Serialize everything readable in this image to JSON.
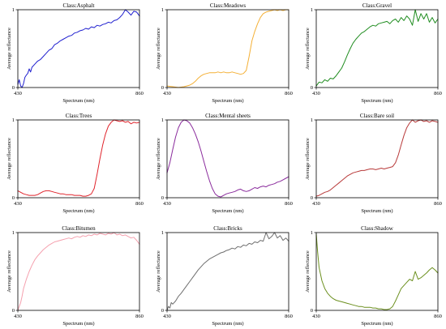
{
  "chart_data": [
    {
      "type": "line",
      "title": "Class:Asphalt",
      "xlabel": "Spectrum (nm)",
      "ylabel": "Average reflectance",
      "xlim": [
        430,
        860
      ],
      "ylim": [
        0,
        1
      ],
      "xticks": [
        "430",
        "860"
      ],
      "yticks": [
        "0",
        "1"
      ],
      "color": "#1f1fcf",
      "series": [
        {
          "x": [
            430,
            435,
            440,
            445,
            450,
            455,
            460,
            465,
            470,
            475,
            480,
            490,
            500,
            510,
            520,
            530,
            540,
            550,
            560,
            570,
            580,
            590,
            600,
            610,
            620,
            630,
            640,
            650,
            660,
            670,
            680,
            690,
            700,
            710,
            720,
            730,
            740,
            750,
            760,
            770,
            780,
            790,
            800,
            810,
            820,
            830,
            840,
            850,
            860
          ],
          "values": [
            0.04,
            0.1,
            0.02,
            0.0,
            0.05,
            0.13,
            0.16,
            0.18,
            0.24,
            0.2,
            0.26,
            0.3,
            0.34,
            0.36,
            0.4,
            0.44,
            0.48,
            0.5,
            0.55,
            0.57,
            0.6,
            0.62,
            0.64,
            0.66,
            0.67,
            0.7,
            0.71,
            0.73,
            0.74,
            0.76,
            0.75,
            0.78,
            0.77,
            0.8,
            0.79,
            0.81,
            0.82,
            0.84,
            0.83,
            0.86,
            0.87,
            0.9,
            0.94,
            1.0,
            0.97,
            0.93,
            0.98,
            0.97,
            0.92
          ]
        }
      ]
    },
    {
      "type": "line",
      "title": "Class:Meadows",
      "xlabel": "Spectrum (nm)",
      "ylabel": "Average reflectance",
      "xlim": [
        430,
        860
      ],
      "ylim": [
        0,
        1
      ],
      "xticks": [
        "430",
        "860"
      ],
      "yticks": [
        "0",
        "1"
      ],
      "color": "#f4b036",
      "series": [
        {
          "x": [
            430,
            450,
            470,
            490,
            510,
            520,
            530,
            540,
            550,
            560,
            570,
            580,
            590,
            600,
            610,
            620,
            630,
            640,
            650,
            660,
            670,
            680,
            690,
            700,
            710,
            720,
            730,
            740,
            750,
            760,
            770,
            780,
            790,
            800,
            810,
            820,
            830,
            840,
            850,
            860
          ],
          "values": [
            0.02,
            0.01,
            0.0,
            0.01,
            0.03,
            0.05,
            0.08,
            0.12,
            0.15,
            0.17,
            0.18,
            0.19,
            0.19,
            0.19,
            0.2,
            0.19,
            0.2,
            0.19,
            0.19,
            0.2,
            0.19,
            0.18,
            0.17,
            0.18,
            0.22,
            0.4,
            0.6,
            0.72,
            0.82,
            0.9,
            0.95,
            0.97,
            0.98,
            0.99,
            1.0,
            0.99,
            1.0,
            0.99,
            1.0,
            1.0
          ]
        }
      ]
    },
    {
      "type": "line",
      "title": "Class:Gravel",
      "xlabel": "Spectrum (nm)",
      "ylabel": "Average reflectance",
      "xlim": [
        430,
        860
      ],
      "ylim": [
        0,
        1
      ],
      "xticks": [
        "430",
        "860"
      ],
      "yticks": [
        "0",
        "1"
      ],
      "color": "#1f8c1f",
      "series": [
        {
          "x": [
            430,
            440,
            450,
            460,
            470,
            480,
            490,
            500,
            510,
            520,
            530,
            540,
            550,
            560,
            570,
            580,
            590,
            600,
            610,
            620,
            630,
            640,
            650,
            660,
            670,
            680,
            690,
            700,
            710,
            720,
            730,
            740,
            750,
            760,
            770,
            780,
            790,
            800,
            810,
            820,
            830,
            840,
            850,
            860
          ],
          "values": [
            0.02,
            0.07,
            0.06,
            0.1,
            0.08,
            0.12,
            0.11,
            0.15,
            0.2,
            0.25,
            0.33,
            0.42,
            0.5,
            0.57,
            0.62,
            0.66,
            0.7,
            0.72,
            0.75,
            0.78,
            0.8,
            0.79,
            0.82,
            0.83,
            0.84,
            0.85,
            0.82,
            0.86,
            0.88,
            0.84,
            0.9,
            0.86,
            0.92,
            0.88,
            0.8,
            1.0,
            0.85,
            0.95,
            0.88,
            0.95,
            0.84,
            0.9,
            0.83,
            0.88
          ]
        }
      ]
    },
    {
      "type": "line",
      "title": "Class:Trees",
      "xlabel": "Spectrum (nm)",
      "ylabel": "Average reflectance",
      "xlim": [
        430,
        860
      ],
      "ylim": [
        0,
        1
      ],
      "xticks": [
        "430",
        "860"
      ],
      "yticks": [
        "0",
        "1"
      ],
      "color": "#e0242c",
      "series": [
        {
          "x": [
            430,
            440,
            450,
            460,
            470,
            480,
            490,
            500,
            510,
            520,
            530,
            540,
            550,
            560,
            570,
            580,
            590,
            600,
            610,
            620,
            630,
            640,
            650,
            660,
            670,
            680,
            690,
            700,
            710,
            720,
            730,
            740,
            750,
            760,
            770,
            780,
            790,
            800,
            810,
            820,
            830,
            840,
            850,
            860
          ],
          "values": [
            0.09,
            0.07,
            0.05,
            0.04,
            0.03,
            0.03,
            0.03,
            0.04,
            0.06,
            0.08,
            0.09,
            0.09,
            0.08,
            0.07,
            0.06,
            0.05,
            0.05,
            0.04,
            0.04,
            0.04,
            0.03,
            0.03,
            0.03,
            0.02,
            0.02,
            0.03,
            0.05,
            0.12,
            0.3,
            0.5,
            0.68,
            0.82,
            0.92,
            0.97,
            1.0,
            0.99,
            0.98,
            0.99,
            0.97,
            0.98,
            0.95,
            0.97,
            0.96,
            0.97
          ]
        }
      ]
    },
    {
      "type": "line",
      "title": "Class:Mental sheets",
      "xlabel": "Spectrum (nm)",
      "ylabel": "Average reflectance",
      "xlim": [
        430,
        860
      ],
      "ylim": [
        0,
        1
      ],
      "xticks": [
        "430",
        "860"
      ],
      "yticks": [
        "0",
        "1"
      ],
      "color": "#8a2b9c",
      "series": [
        {
          "x": [
            430,
            440,
            450,
            460,
            470,
            480,
            490,
            500,
            510,
            520,
            530,
            540,
            550,
            560,
            570,
            580,
            590,
            600,
            610,
            620,
            630,
            640,
            650,
            660,
            670,
            680,
            690,
            700,
            710,
            720,
            730,
            740,
            750,
            760,
            770,
            780,
            790,
            800,
            810,
            820,
            830,
            840,
            850,
            860
          ],
          "values": [
            0.32,
            0.45,
            0.62,
            0.78,
            0.9,
            0.97,
            1.0,
            0.99,
            0.96,
            0.9,
            0.82,
            0.72,
            0.6,
            0.47,
            0.34,
            0.22,
            0.12,
            0.05,
            0.02,
            0.01,
            0.03,
            0.05,
            0.06,
            0.07,
            0.08,
            0.1,
            0.11,
            0.09,
            0.08,
            0.09,
            0.11,
            0.13,
            0.12,
            0.14,
            0.15,
            0.14,
            0.16,
            0.17,
            0.18,
            0.2,
            0.21,
            0.23,
            0.25,
            0.27
          ]
        }
      ]
    },
    {
      "type": "line",
      "title": "Class:Bare soil",
      "xlabel": "Spectrum (nm)",
      "ylabel": "Average reflectance",
      "xlim": [
        430,
        860
      ],
      "ylim": [
        0,
        1
      ],
      "xticks": [
        "430",
        "860"
      ],
      "yticks": [
        "0",
        "1"
      ],
      "color": "#b83a3a",
      "series": [
        {
          "x": [
            430,
            440,
            450,
            460,
            470,
            480,
            490,
            500,
            510,
            520,
            530,
            540,
            550,
            560,
            570,
            580,
            590,
            600,
            610,
            620,
            630,
            640,
            650,
            660,
            670,
            680,
            690,
            700,
            710,
            720,
            730,
            740,
            750,
            760,
            770,
            780,
            790,
            800,
            810,
            820,
            830,
            840,
            850,
            860
          ],
          "values": [
            0.02,
            0.03,
            0.05,
            0.07,
            0.08,
            0.1,
            0.13,
            0.16,
            0.19,
            0.22,
            0.25,
            0.28,
            0.3,
            0.32,
            0.33,
            0.34,
            0.35,
            0.35,
            0.36,
            0.37,
            0.37,
            0.36,
            0.37,
            0.38,
            0.37,
            0.38,
            0.39,
            0.4,
            0.45,
            0.55,
            0.68,
            0.8,
            0.9,
            0.96,
            1.0,
            0.97,
            0.99,
            1.0,
            0.98,
            0.99,
            0.97,
            0.99,
            0.98,
            0.97
          ]
        }
      ]
    },
    {
      "type": "line",
      "title": "Class:Bitumen",
      "xlabel": "Spectrum (nm)",
      "ylabel": "Average reflectance",
      "xlim": [
        430,
        860
      ],
      "ylim": [
        0,
        1
      ],
      "xticks": [
        "430",
        "860"
      ],
      "yticks": [
        "0",
        "1"
      ],
      "color": "#f5a0ae",
      "series": [
        {
          "x": [
            430,
            435,
            440,
            445,
            450,
            460,
            470,
            480,
            490,
            500,
            510,
            520,
            530,
            540,
            550,
            560,
            570,
            580,
            590,
            600,
            610,
            620,
            630,
            640,
            650,
            660,
            670,
            680,
            690,
            700,
            710,
            720,
            730,
            740,
            750,
            760,
            770,
            780,
            790,
            800,
            810,
            820,
            830,
            840,
            850,
            860
          ],
          "values": [
            0.0,
            0.05,
            0.1,
            0.18,
            0.28,
            0.4,
            0.5,
            0.58,
            0.65,
            0.7,
            0.74,
            0.78,
            0.81,
            0.84,
            0.86,
            0.88,
            0.89,
            0.9,
            0.91,
            0.92,
            0.93,
            0.92,
            0.94,
            0.95,
            0.94,
            0.96,
            0.95,
            0.97,
            0.96,
            0.98,
            0.97,
            0.99,
            0.98,
            0.97,
            0.99,
            0.98,
            1.0,
            0.97,
            0.98,
            0.96,
            0.97,
            0.95,
            0.93,
            0.94,
            0.9,
            0.85
          ]
        }
      ]
    },
    {
      "type": "line",
      "title": "Class:Bricks",
      "xlabel": "Spectrum (nm)",
      "ylabel": "Average reflectance",
      "xlim": [
        430,
        860
      ],
      "ylim": [
        0,
        1
      ],
      "xticks": [
        "430",
        "860"
      ],
      "yticks": [
        "0",
        "1"
      ],
      "color": "#6e6e6e",
      "series": [
        {
          "x": [
            430,
            435,
            440,
            445,
            450,
            460,
            470,
            480,
            490,
            500,
            510,
            520,
            530,
            540,
            550,
            560,
            570,
            580,
            590,
            600,
            610,
            620,
            630,
            640,
            650,
            660,
            670,
            680,
            690,
            700,
            710,
            720,
            730,
            740,
            750,
            760,
            770,
            780,
            790,
            800,
            810,
            820,
            830,
            840,
            850,
            860
          ],
          "values": [
            0.0,
            0.05,
            0.03,
            0.1,
            0.08,
            0.12,
            0.18,
            0.22,
            0.27,
            0.32,
            0.37,
            0.42,
            0.47,
            0.52,
            0.56,
            0.6,
            0.63,
            0.66,
            0.68,
            0.7,
            0.72,
            0.74,
            0.75,
            0.77,
            0.78,
            0.8,
            0.79,
            0.82,
            0.81,
            0.84,
            0.83,
            0.86,
            0.85,
            0.88,
            0.87,
            0.9,
            0.89,
            1.0,
            0.92,
            0.95,
            1.0,
            0.93,
            0.96,
            0.9,
            0.93,
            0.89
          ]
        }
      ]
    },
    {
      "type": "line",
      "title": "Class:Shadow",
      "xlabel": "Spectrum (nm)",
      "ylabel": "Average reflectance",
      "xlim": [
        430,
        860
      ],
      "ylim": [
        0,
        1
      ],
      "xticks": [
        "430",
        "860"
      ],
      "yticks": [
        "0",
        "1"
      ],
      "color": "#6b8f1e",
      "series": [
        {
          "x": [
            430,
            435,
            440,
            450,
            460,
            470,
            480,
            490,
            500,
            510,
            520,
            530,
            540,
            550,
            560,
            570,
            580,
            590,
            600,
            610,
            620,
            630,
            640,
            650,
            660,
            670,
            680,
            690,
            700,
            710,
            720,
            730,
            740,
            750,
            760,
            770,
            780,
            790,
            800,
            810,
            820,
            830,
            840,
            850,
            860
          ],
          "values": [
            0.98,
            0.75,
            0.55,
            0.38,
            0.28,
            0.22,
            0.18,
            0.15,
            0.13,
            0.12,
            0.11,
            0.1,
            0.09,
            0.08,
            0.07,
            0.06,
            0.05,
            0.05,
            0.04,
            0.04,
            0.04,
            0.03,
            0.03,
            0.02,
            0.02,
            0.01,
            0.01,
            0.02,
            0.05,
            0.12,
            0.2,
            0.28,
            0.32,
            0.36,
            0.4,
            0.38,
            0.5,
            0.4,
            0.42,
            0.45,
            0.48,
            0.52,
            0.55,
            0.52,
            0.48
          ]
        }
      ]
    }
  ]
}
